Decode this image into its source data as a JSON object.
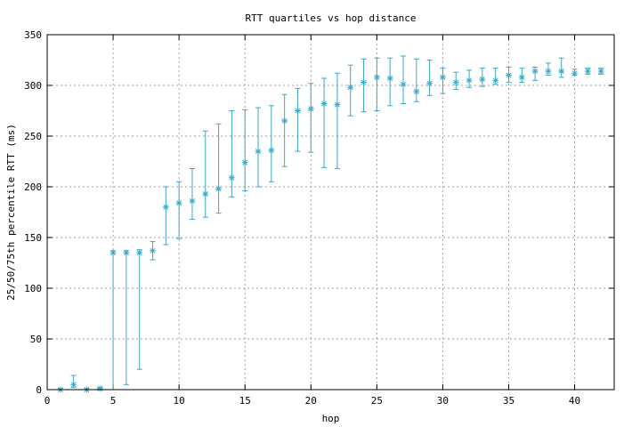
{
  "chart_data": {
    "type": "scatter",
    "title": "RTT quartiles vs hop distance",
    "xlabel": "hop",
    "ylabel": "25/50/75th percentile RTT (ms)",
    "xlim": [
      0,
      43
    ],
    "ylim": [
      0,
      350
    ],
    "xticks": [
      0,
      5,
      10,
      15,
      20,
      25,
      30,
      35,
      40
    ],
    "yticks": [
      0,
      50,
      100,
      150,
      200,
      250,
      300,
      350
    ],
    "grid": true,
    "legend": "none",
    "color": "#3ba8c8",
    "marker": "asterisk",
    "series": [
      {
        "x": [
          1,
          2,
          3,
          4,
          5,
          6,
          7,
          8,
          9,
          10,
          11,
          12,
          13,
          14,
          15,
          16,
          17,
          18,
          19,
          20,
          21,
          22,
          23,
          24,
          25,
          26,
          27,
          28,
          29,
          30,
          31,
          32,
          33,
          34,
          35,
          36,
          37,
          38,
          39,
          40,
          41,
          42
        ],
        "y": [
          0,
          5,
          0,
          1,
          135,
          135,
          135,
          137,
          180,
          184,
          186,
          193,
          198,
          209,
          224,
          235,
          236,
          265,
          275,
          277,
          282,
          281,
          298,
          303,
          308,
          307,
          301,
          294,
          302,
          308,
          303,
          305,
          306,
          305,
          310,
          308,
          314,
          314,
          314,
          312,
          314,
          314
        ],
        "low": [
          0,
          2,
          0,
          0,
          0,
          5,
          20,
          128,
          143,
          149,
          168,
          170,
          174,
          190,
          196,
          200,
          205,
          220,
          235,
          234,
          219,
          218,
          270,
          274,
          275,
          280,
          282,
          284,
          290,
          292,
          296,
          298,
          299,
          301,
          303,
          303,
          305,
          310,
          308,
          310,
          311,
          311
        ],
        "high": [
          1,
          14,
          1,
          2,
          137,
          137,
          138,
          146,
          200,
          205,
          218,
          255,
          262,
          275,
          276,
          278,
          280,
          291,
          297,
          302,
          307,
          312,
          320,
          326,
          327,
          327,
          329,
          326,
          325,
          317,
          313,
          315,
          317,
          317,
          318,
          317,
          318,
          322,
          327,
          316,
          317,
          317
        ]
      }
    ]
  }
}
